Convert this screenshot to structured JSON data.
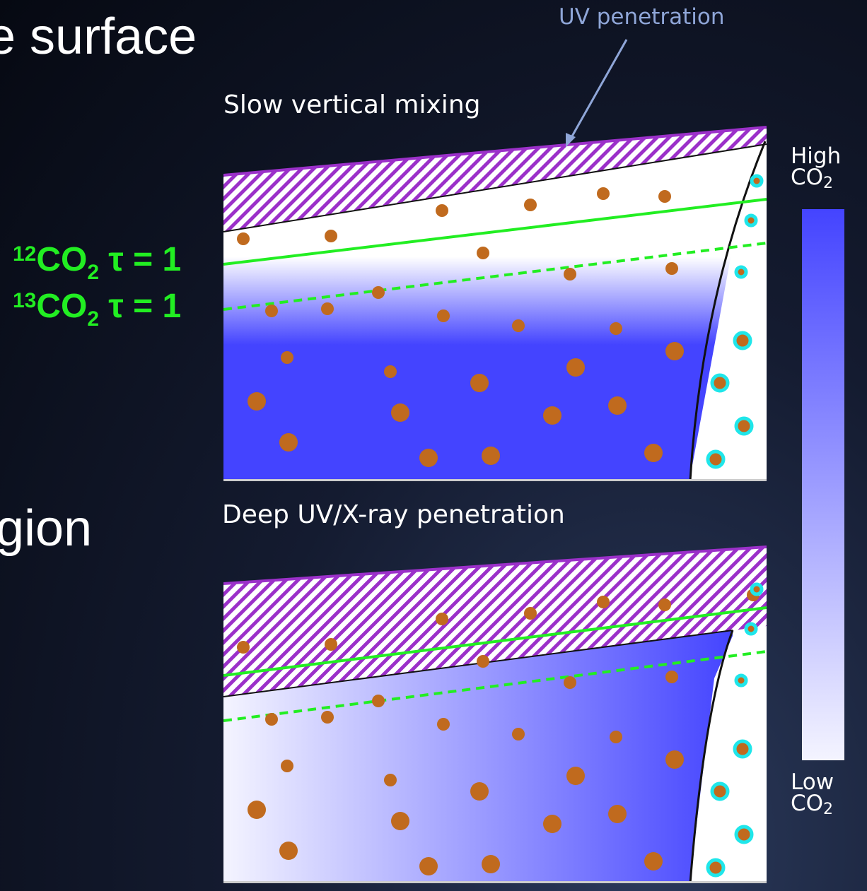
{
  "slide_text": {
    "fragment_top": "e surface",
    "fragment_middle": "gion"
  },
  "annotation": {
    "uv_label": "UV penetration"
  },
  "panels": [
    {
      "title": "Slow vertical mixing"
    },
    {
      "title": "Deep UV/X-ray penetration"
    }
  ],
  "tau_labels": [
    {
      "mass": "12",
      "molecule": "CO",
      "sub": "2",
      "rest": " τ = 1"
    },
    {
      "mass": "13",
      "molecule": "CO",
      "sub": "2",
      "rest": " τ = 1"
    }
  ],
  "colorbar": {
    "high_label": "High",
    "high_species": "CO",
    "high_sub": "2",
    "low_label": "Low",
    "low_species": "CO",
    "low_sub": "2",
    "high_color": "#4444ff",
    "low_color": "#f4f4ff"
  },
  "colors": {
    "hatch": "#9b30c9",
    "tau_line": "#22ee22",
    "grain": "#c06a1e",
    "ice_ring": "#1fe6ea",
    "co2_blue": "#4444ff"
  }
}
